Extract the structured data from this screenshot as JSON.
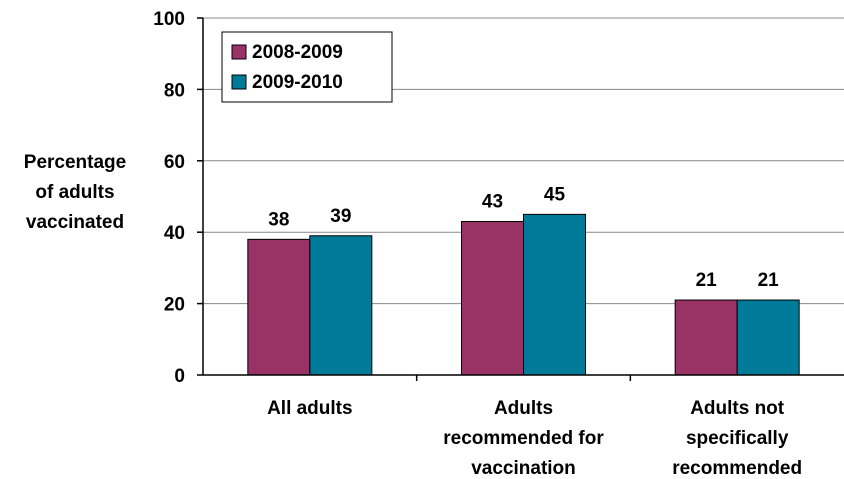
{
  "chart_data": {
    "type": "bar",
    "title": "",
    "xlabel": "",
    "ylabel_lines": [
      "Percentage",
      "of adults",
      "vaccinated"
    ],
    "ylim": [
      0,
      100
    ],
    "yticks": [
      "0",
      "20",
      "40",
      "60",
      "80",
      "100"
    ],
    "grid": true,
    "legend_position": "top-left",
    "categories": [
      [
        "All adults"
      ],
      [
        "Adults",
        "recommended for",
        "vaccination"
      ],
      [
        "Adults not",
        "specifically",
        "recommended"
      ]
    ],
    "series": [
      {
        "name": "2008-2009",
        "color": "#993366",
        "values": [
          38,
          43,
          21
        ]
      },
      {
        "name": "2009-2010",
        "color": "#007A99",
        "values": [
          39,
          45,
          21
        ]
      }
    ]
  }
}
